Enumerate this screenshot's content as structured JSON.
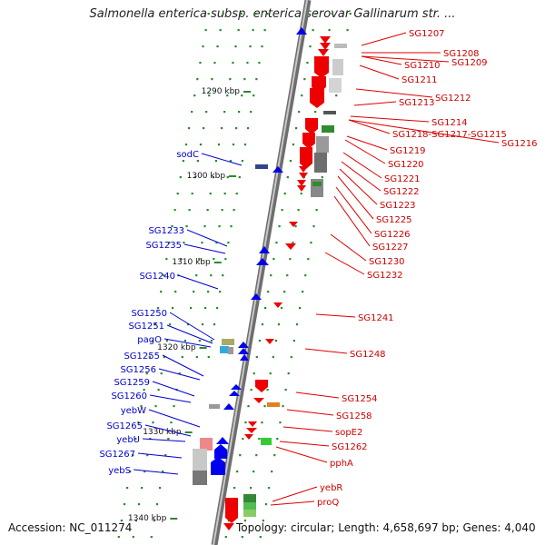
{
  "title": "Salmonella enterica subsp. enterica serovar Gallinarum str. ...",
  "footer": {
    "accession": "Accession: NC_011274",
    "topology": "Topology: circular; Length: 4,658,697 bp; Genes: 4,040"
  },
  "colors": {
    "forward": "#ee0000",
    "reverse": "#0000ee",
    "axis": "#8a8a8a",
    "tick": "#2a8a2a"
  },
  "scale_labels": [
    "1290 kbp",
    "1300 kbp",
    "1310 kbp",
    "1320 kbp",
    "1330 kbp",
    "1340 kbp"
  ],
  "right_labels": [
    "SG1207",
    "SG1208",
    "SG1210",
    "SG1209",
    "SG1211",
    "SG1212",
    "SG1213",
    "SG1214",
    "SG1218-SG1217-SG1215",
    "SG1216",
    "SG1219",
    "SG1220",
    "SG1221",
    "SG1222",
    "SG1223",
    "SG1225",
    "SG1226",
    "SG1227",
    "SG1230",
    "SG1232",
    "SG1241",
    "SG1248",
    "SG1254",
    "SG1258",
    "sopE2",
    "SG1262",
    "pphA",
    "yebR",
    "proQ"
  ],
  "left_labels": [
    "sodC",
    "SG1233",
    "SG1235",
    "SG1240",
    "SG1250",
    "SG1251",
    "pagO",
    "SG1255",
    "SG1256",
    "SG1259",
    "SG1260",
    "yebW",
    "SG1265",
    "yebU",
    "SG1267",
    "yebS"
  ]
}
